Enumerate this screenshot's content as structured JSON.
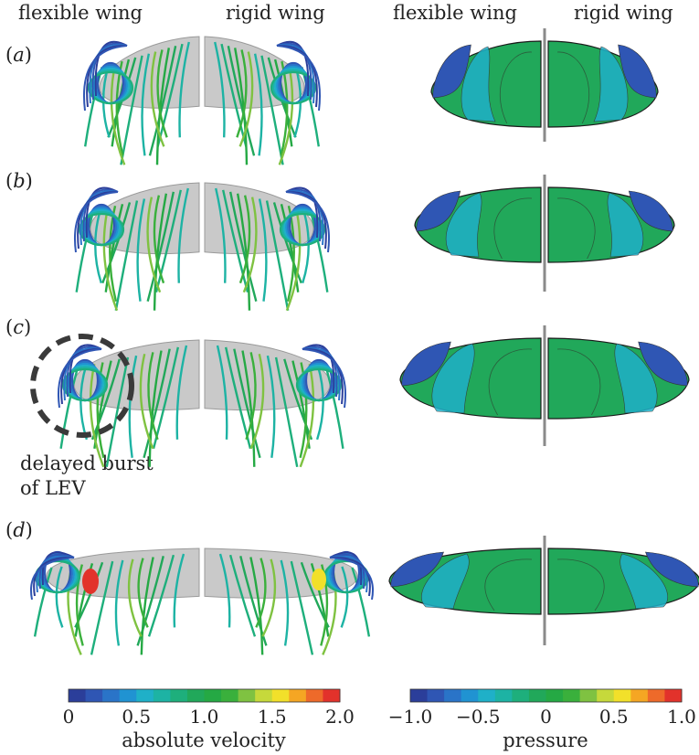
{
  "headers": {
    "left_flexible": "flexible wing",
    "left_rigid": "rigid wing",
    "right_flexible": "flexible wing",
    "right_rigid": "rigid wing"
  },
  "panels": [
    {
      "letter": "a"
    },
    {
      "letter": "b"
    },
    {
      "letter": "c"
    },
    {
      "letter": "d"
    }
  ],
  "annotation": {
    "line1": "delayed burst",
    "line2": "of LEV"
  },
  "colorbars": {
    "velocity": {
      "label": "absolute velocity",
      "ticks": [
        "0",
        "0.5",
        "1.0",
        "1.5",
        "2.0"
      ]
    },
    "pressure": {
      "label": "pressure",
      "ticks": [
        "−1.0",
        "−0.5",
        "0",
        "0.5",
        "1.0"
      ]
    },
    "colors": [
      "#2b3e9a",
      "#2f56b4",
      "#2a74c8",
      "#2093d2",
      "#1fb0c8",
      "#1db3a4",
      "#1eaf7c",
      "#21a85a",
      "#25a944",
      "#3ab03c",
      "#7fc241",
      "#c6d93b",
      "#f2e02a",
      "#f5a623",
      "#ee6a2a",
      "#e2322b"
    ]
  }
}
